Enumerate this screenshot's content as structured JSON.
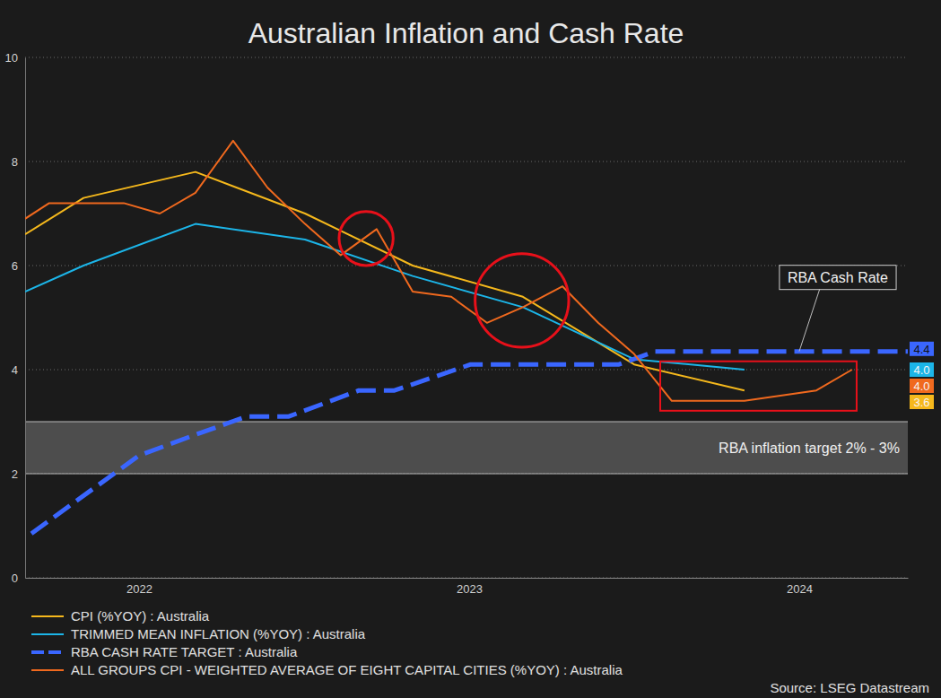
{
  "chart_data": {
    "type": "line",
    "title": "Australian Inflation and Cash Rate",
    "source": "Source: LSEG Datastream",
    "xlim": [
      2021.655,
      2024.329
    ],
    "xticks": [
      2022,
      2023,
      2024
    ],
    "ylim": [
      0,
      10
    ],
    "yticks": [
      0,
      2,
      4,
      6,
      8,
      10
    ],
    "grid": true,
    "legend": "bottom-left",
    "series": [
      {
        "name": "CPI (%YOY) : Australia",
        "color": "#f5b81c",
        "line_style": "solid",
        "x": [
          2021.655,
          2021.832,
          2022.171,
          2022.503,
          2022.829,
          2023.163,
          2023.5,
          2023.834
        ],
        "values": [
          6.6,
          7.3,
          7.8,
          7.0,
          6.0,
          5.4,
          4.1,
          3.6
        ],
        "end_label": {
          "value": 3.6,
          "label": "3.6"
        }
      },
      {
        "name": "TRIMMED MEAN INFLATION (%YOY) : Australia",
        "color": "#1cb5e8",
        "line_style": "solid",
        "x": [
          2021.655,
          2021.832,
          2022.171,
          2022.503,
          2022.829,
          2023.163,
          2023.5,
          2023.834
        ],
        "values": [
          5.5,
          6.0,
          6.8,
          6.5,
          5.8,
          5.2,
          4.2,
          4.0
        ],
        "end_label": {
          "value": 4.0,
          "label": "4.0"
        }
      },
      {
        "name": "RBA CASH RATE TARGET : Australia",
        "color": "#3a66ff",
        "line_style": "dashed",
        "x": [
          2021.674,
          2022.0,
          2022.171,
          2022.326,
          2022.454,
          2022.666,
          2022.774,
          2023.005,
          2023.454,
          2023.563,
          2024.329
        ],
        "values": [
          0.85,
          2.35,
          2.75,
          3.1,
          3.1,
          3.6,
          3.6,
          4.1,
          4.1,
          4.35,
          4.35
        ],
        "end_label": {
          "value": 4.4,
          "label": "4.4"
        }
      },
      {
        "name": "ALL GROUPS CPI - WEIGHTED AVERAGE OF EIGHT CAPITAL CITIES (%YOY) : Australia",
        "color": "#f0691e",
        "line_style": "solid",
        "x": [
          2021.655,
          2021.728,
          2021.832,
          2021.954,
          2022.063,
          2022.171,
          2022.285,
          2022.389,
          2022.503,
          2022.611,
          2022.72,
          2022.829,
          2022.946,
          2023.054,
          2023.163,
          2023.283,
          2023.391,
          2023.5,
          2023.614,
          2023.726,
          2023.834,
          2023.943,
          2024.052,
          2024.16
        ],
        "values": [
          6.9,
          7.2,
          7.2,
          7.2,
          7.0,
          7.4,
          8.4,
          7.5,
          6.8,
          6.2,
          6.7,
          5.5,
          5.4,
          4.9,
          5.2,
          5.6,
          4.9,
          4.3,
          3.4,
          3.4,
          3.4,
          3.5,
          3.6,
          4.0
        ],
        "end_label": {
          "value": 4.0,
          "label": "4.0"
        }
      }
    ],
    "target_band": {
      "range": [
        2,
        3
      ],
      "label": "RBA inflation target 2% - 3%"
    },
    "annotations": [
      {
        "shape": "circle",
        "x": 2022.688,
        "y": 6.52,
        "r": 0.52
      },
      {
        "shape": "circle",
        "x": 2023.16,
        "y": 5.33,
        "r": 0.9
      },
      {
        "shape": "rect",
        "x": [
          2023.579,
          2024.174
        ],
        "y": [
          3.21,
          4.16
        ]
      },
      {
        "shape": "callout",
        "text": "RBA Cash Rate",
        "x": 2024.0,
        "y": 4.35
      }
    ]
  }
}
